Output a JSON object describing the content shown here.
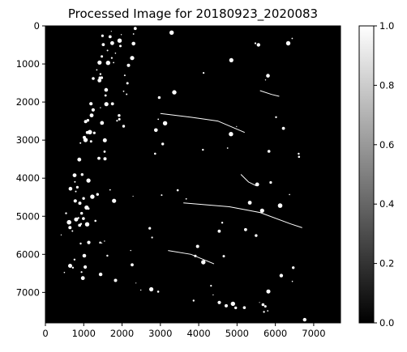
{
  "chart_data": {
    "type": "heatmap",
    "title": "Processed Image for 20180923_2020083",
    "xlabel": "",
    "ylabel": "",
    "xlim": [
      0,
      7700
    ],
    "ylim": [
      7800,
      0
    ],
    "x_ticks": [
      0,
      1000,
      2000,
      3000,
      4000,
      5000,
      6000,
      7000
    ],
    "y_ticks": [
      0,
      1000,
      2000,
      3000,
      4000,
      5000,
      6000,
      7000
    ],
    "x_tick_labels": [
      "0",
      "1000",
      "2000",
      "3000",
      "4000",
      "5000",
      "6000",
      "7000"
    ],
    "y_tick_labels": [
      "0",
      "1000",
      "2000",
      "3000",
      "4000",
      "5000",
      "6000",
      "7000"
    ],
    "colorbar": {
      "range": [
        0.0,
        1.0
      ],
      "ticks": [
        0.0,
        0.2,
        0.4,
        0.6,
        0.8,
        1.0
      ],
      "tick_labels": [
        "0.0",
        "0.2",
        "0.4",
        "0.6",
        "0.8",
        "1.0"
      ],
      "colormap": "gray",
      "low_color": "#000000",
      "high_color": "#ffffff"
    },
    "grid": false,
    "content": "binary mask on a rotated satellite scene footprint; bright clusters concentrated in the upper-left portion, scattered bright specks and river-like lines across the rest"
  }
}
